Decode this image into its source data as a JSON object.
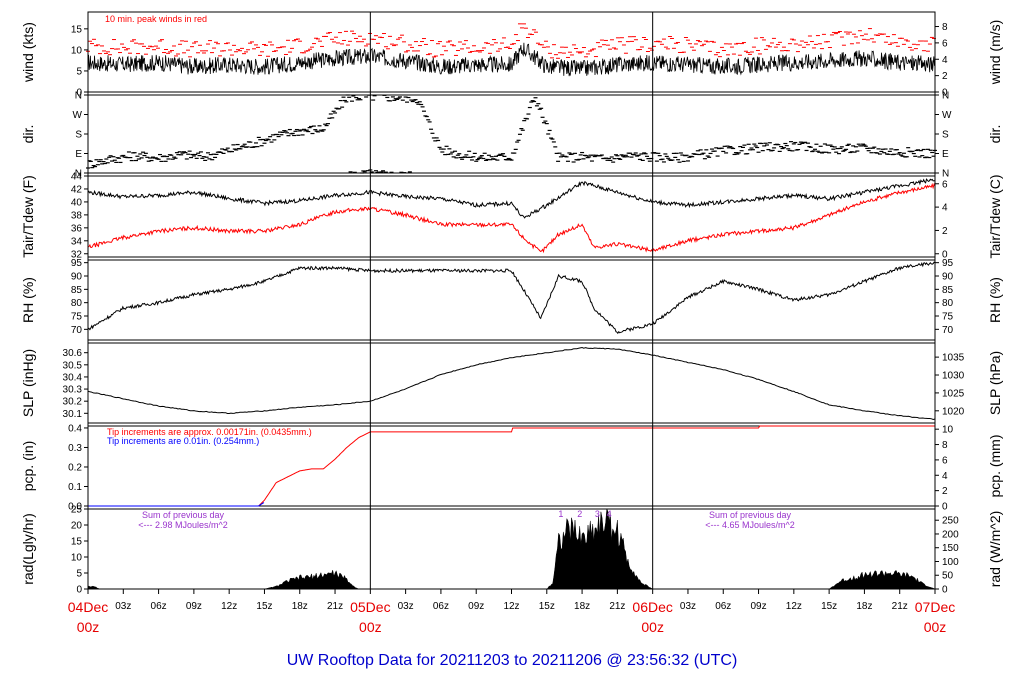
{
  "title": "UW Rooftop Data for 20211203  to  20211206 @ 23:56:32  (UTC)",
  "colors": {
    "black": "#000000",
    "red": "#ff0000",
    "blue": "#0000ff",
    "purple": "#9933cc",
    "title": "#0000cc",
    "date": "#e60000"
  },
  "chart_data": [
    {
      "type": "line",
      "panel": "wind",
      "ylabel": "wind (kts)",
      "ylabel2": "wind (m/s)",
      "ylim": [
        0,
        19
      ],
      "yticks": [
        0,
        5,
        10,
        15
      ],
      "y2ticks": [
        0,
        2,
        4,
        6,
        8
      ],
      "annotation": "10 min. peak winds in red",
      "series": [
        {
          "name": "wind",
          "color": "#000000",
          "x": [
            0,
            3,
            6,
            9,
            12,
            15,
            18,
            21,
            24,
            27,
            30,
            33,
            36,
            37,
            39,
            42,
            45,
            48,
            51,
            54,
            57,
            60,
            63,
            66,
            69,
            72
          ],
          "y": [
            7,
            6.5,
            7,
            6,
            6.5,
            6,
            7,
            8,
            8.5,
            7.5,
            6,
            6.5,
            6.5,
            10.5,
            6,
            5.5,
            6.5,
            7,
            6.5,
            6,
            6.5,
            7,
            7.5,
            8,
            7,
            6.5
          ]
        },
        {
          "name": "10 min. peak winds",
          "color": "#ff0000",
          "x": [
            0,
            3,
            6,
            9,
            12,
            15,
            18,
            21,
            24,
            27,
            30,
            33,
            36,
            37,
            39,
            42,
            45,
            48,
            51,
            54,
            57,
            60,
            63,
            66,
            69,
            72
          ],
          "y": [
            11,
            10.5,
            11,
            10,
            10.5,
            10,
            11,
            12.5,
            13,
            11.5,
            10,
            10.5,
            11,
            16,
            10,
            9.5,
            11,
            11.5,
            11,
            10,
            11,
            11.5,
            12,
            14,
            12,
            11
          ]
        }
      ]
    },
    {
      "type": "scatter",
      "panel": "dir",
      "ylabel": "dir.",
      "ylabel2": "dir.",
      "ylim": [
        0,
        360
      ],
      "yticks": [
        "N",
        "E",
        "S",
        "W",
        "N"
      ],
      "series": [
        {
          "name": "dir",
          "color": "#000000",
          "x": [
            0,
            2,
            4,
            6,
            8,
            10,
            12,
            14,
            16,
            18,
            20,
            22,
            24,
            26,
            28,
            30,
            32,
            34,
            36,
            38,
            40,
            42,
            44,
            46,
            48,
            50,
            52,
            54,
            56,
            58,
            60,
            62,
            64,
            66,
            68,
            70,
            72
          ],
          "y": [
            40,
            65,
            80,
            70,
            85,
            75,
            105,
            135,
            170,
            195,
            205,
            350,
            355,
            350,
            345,
            110,
            80,
            70,
            75,
            355,
            70,
            75,
            65,
            80,
            75,
            70,
            85,
            100,
            110,
            120,
            125,
            115,
            110,
            115,
            100,
            95,
            90
          ]
        }
      ]
    },
    {
      "type": "line",
      "panel": "temp",
      "ylabel": "Tair/Tdew (F)",
      "ylabel2": "Tair/Tdew (C)",
      "ylim": [
        31.5,
        44
      ],
      "yticks": [
        32,
        34,
        36,
        38,
        40,
        42,
        44
      ],
      "y2ticks": [
        0,
        2,
        4,
        6
      ],
      "series": [
        {
          "name": "Tair",
          "color": "#000000",
          "x": [
            0,
            3,
            6,
            9,
            12,
            15,
            18,
            21,
            24,
            27,
            30,
            33,
            36,
            37,
            39,
            42,
            45,
            48,
            51,
            54,
            57,
            60,
            63,
            66,
            69,
            72
          ],
          "y": [
            41.5,
            40.8,
            41,
            41.5,
            40.5,
            39.8,
            40.2,
            41,
            41.5,
            40.8,
            40.5,
            39.5,
            39.8,
            37.5,
            39.5,
            43,
            41.5,
            40,
            39.5,
            40,
            40.5,
            41,
            40.5,
            41.5,
            42.5,
            43.5
          ]
        },
        {
          "name": "Tdew",
          "color": "#ff0000",
          "x": [
            0,
            3,
            6,
            9,
            12,
            15,
            18,
            21,
            24,
            27,
            30,
            33,
            36,
            37,
            38.5,
            40,
            42,
            43,
            45,
            48,
            51,
            54,
            57,
            60,
            63,
            66,
            69,
            72
          ],
          "y": [
            33,
            34.5,
            35.5,
            36,
            35.5,
            35.5,
            36.5,
            38.5,
            39,
            38,
            36.5,
            36.5,
            36.5,
            34.5,
            32.2,
            35,
            36.5,
            33,
            33.5,
            32.5,
            34,
            35,
            35.5,
            36,
            38,
            40,
            41.5,
            42.5
          ]
        }
      ]
    },
    {
      "type": "line",
      "panel": "rh",
      "ylabel": "RH (%)",
      "ylabel2": "RH (%)",
      "ylim": [
        66,
        96
      ],
      "yticks": [
        70,
        75,
        80,
        85,
        90,
        95
      ],
      "series": [
        {
          "name": "RH",
          "color": "#000000",
          "x": [
            0,
            3,
            6,
            9,
            12,
            15,
            18,
            21,
            24,
            27,
            30,
            33,
            36,
            37,
            38.5,
            40,
            42,
            43,
            45,
            48,
            51,
            54,
            57,
            60,
            63,
            66,
            69,
            72
          ],
          "y": [
            70,
            78,
            80,
            83,
            85,
            88,
            93,
            93,
            92,
            92,
            92,
            92,
            92,
            85,
            74,
            90,
            88,
            78,
            69,
            72,
            82,
            88,
            85,
            81,
            83,
            88,
            93,
            95
          ]
        }
      ]
    },
    {
      "type": "line",
      "panel": "slp",
      "ylabel": "SLP (inHg)",
      "ylabel2": "SLP (hPa)",
      "ylim": [
        30.02,
        30.68
      ],
      "yticks": [
        30.1,
        30.2,
        30.3,
        30.4,
        30.5,
        30.6
      ],
      "y2ticks": [
        1020,
        1025,
        1030,
        1035
      ],
      "series": [
        {
          "name": "SLP",
          "color": "#000000",
          "x": [
            0,
            3,
            6,
            9,
            12,
            15,
            18,
            21,
            24,
            27,
            30,
            33,
            36,
            39,
            42,
            45,
            48,
            51,
            54,
            57,
            60,
            63,
            66,
            69,
            72
          ],
          "y": [
            30.28,
            30.22,
            30.16,
            30.12,
            30.1,
            30.12,
            30.15,
            30.17,
            30.2,
            30.3,
            30.42,
            30.5,
            30.56,
            30.6,
            30.64,
            30.63,
            30.58,
            30.52,
            30.46,
            30.38,
            30.28,
            30.17,
            30.12,
            30.08,
            30.05
          ]
        }
      ]
    },
    {
      "type": "line",
      "panel": "pcp",
      "ylabel": "pcp. (in)",
      "ylabel2": "pcp. (mm)",
      "ylim": [
        0,
        0.41
      ],
      "yticks": [
        0.0,
        0.1,
        0.2,
        0.3,
        0.4
      ],
      "y2ticks": [
        0,
        2,
        4,
        6,
        8,
        10
      ],
      "annotations": [
        "Tip increments are approx. 0.00171in. (0.0435mm.)",
        "Tip increments are 0.01in. (0.254mm.)"
      ],
      "series": [
        {
          "name": "pcp_fine",
          "color": "#ff0000",
          "x": [
            0,
            14.5,
            15,
            16,
            17,
            18,
            19,
            20,
            21,
            22,
            23,
            24,
            25,
            36,
            36.1,
            57,
            57.1,
            72
          ],
          "y": [
            0,
            0,
            0.03,
            0.12,
            0.15,
            0.18,
            0.19,
            0.19,
            0.24,
            0.3,
            0.35,
            0.38,
            0.38,
            0.38,
            0.4,
            0.4,
            0.41,
            0.41
          ]
        },
        {
          "name": "pcp_coarse",
          "color": "#0000ff",
          "x": [
            0,
            14.5,
            15
          ],
          "y": [
            0,
            0,
            0.02
          ]
        }
      ]
    },
    {
      "type": "area",
      "panel": "rad",
      "ylabel": "rad(Lgly/hr)",
      "ylabel2": "rad (W/m^2)",
      "ylim": [
        0,
        25
      ],
      "yticks": [
        0,
        5,
        10,
        15,
        20,
        25
      ],
      "y2ticks": [
        0,
        50,
        100,
        150,
        200,
        250
      ],
      "annotations": [
        {
          "text": "Sum of previous day",
          "sub": "<--- 2.98 MJoules/m^2"
        },
        {
          "text": "Sum of previous day",
          "sub": "<--- 4.65 MJoules/m^2"
        }
      ],
      "markers": [
        "1",
        "2",
        "3",
        "4"
      ],
      "series": [
        {
          "name": "rad",
          "color": "#000000",
          "x": [
            0,
            0.7,
            1,
            15,
            16,
            17,
            18,
            19,
            20,
            21,
            22,
            22.5,
            23,
            39,
            39.5,
            40,
            41,
            42,
            43,
            44,
            45,
            46,
            47,
            48,
            63,
            64,
            66,
            68,
            70,
            71,
            72
          ],
          "y": [
            1,
            0.5,
            0,
            0,
            0.8,
            2.5,
            3.5,
            3.8,
            4.5,
            5,
            3,
            1,
            0,
            0,
            2,
            15,
            19,
            16,
            19,
            22,
            18,
            8,
            2,
            0,
            0,
            2.5,
            4.5,
            5,
            4,
            1.5,
            0
          ]
        }
      ]
    }
  ],
  "xaxis": {
    "hour_ticks": [
      "03z",
      "06z",
      "09z",
      "12z",
      "15z",
      "18z",
      "21z"
    ],
    "days": [
      {
        "date": "04Dec",
        "hour": "00z"
      },
      {
        "date": "05Dec",
        "hour": "00z"
      },
      {
        "date": "06Dec",
        "hour": "00z"
      },
      {
        "date": "07Dec",
        "hour": "00z"
      }
    ]
  }
}
